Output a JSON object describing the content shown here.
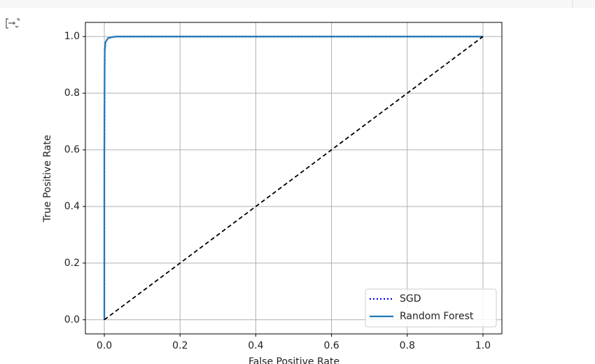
{
  "chart_data": {
    "type": "line",
    "xlabel": "False Positive Rate",
    "ylabel": "True Positive Rate",
    "xlim": [
      -0.05,
      1.05
    ],
    "ylim": [
      -0.05,
      1.05
    ],
    "xticks": [
      {
        "value": 0,
        "label": "0.0"
      },
      0.2,
      0.4,
      0.6,
      0.8,
      {
        "value": 1,
        "label": "1.0"
      }
    ],
    "yticks": [
      {
        "value": 0,
        "label": "0.0"
      },
      0.2,
      0.4,
      0.6,
      0.8,
      {
        "value": 1,
        "label": "1.0"
      }
    ],
    "grid": true,
    "legend_position": "lower right",
    "series": [
      {
        "name": "SGD",
        "color": "blue",
        "style": "dotted",
        "x": [
          0,
          0,
          0.001,
          0.003,
          0.01,
          0.03,
          1
        ],
        "values": [
          0,
          0.6,
          0.95,
          0.98,
          0.995,
          1,
          1
        ]
      },
      {
        "name": "Random Forest",
        "color": "#1f77b4",
        "style": "solid",
        "x": [
          0,
          0,
          0.001,
          0.003,
          0.01,
          0.03,
          1
        ],
        "values": [
          0,
          0.6,
          0.95,
          0.98,
          0.995,
          1,
          1
        ]
      }
    ],
    "reference_line": {
      "color": "#000000",
      "style": "dashed",
      "x": [
        0,
        1
      ],
      "values": [
        0,
        1
      ]
    }
  }
}
